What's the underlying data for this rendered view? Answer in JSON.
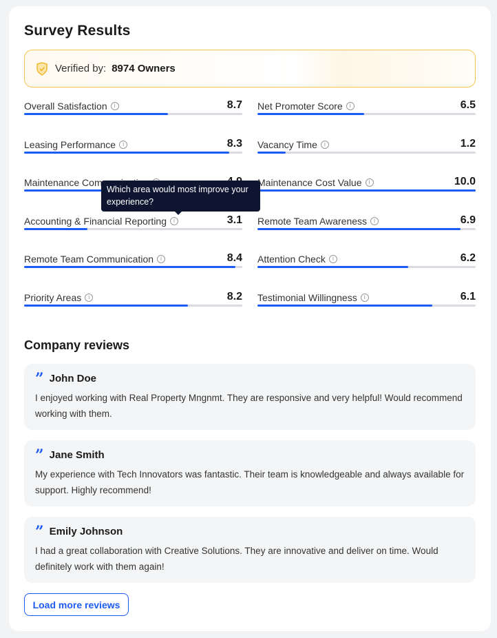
{
  "title": "Survey Results",
  "verified": {
    "label": "Verified by:",
    "value": "8974 Owners"
  },
  "metrics": [
    {
      "name": "Overall Satisfaction",
      "score": "8.7",
      "fill": 0.66
    },
    {
      "name": "Net Promoter Score",
      "score": "6.5",
      "fill": 0.49
    },
    {
      "name": "Leasing Performance",
      "score": "8.3",
      "fill": 0.94
    },
    {
      "name": "Vacancy Time",
      "score": "1.2",
      "fill": 0.13
    },
    {
      "name": "Maintenance Communication",
      "score": "4.9",
      "fill": 0.5
    },
    {
      "name": "Maintenance Cost Value",
      "score": "10.0",
      "fill": 1.0
    },
    {
      "name": "Accounting & Financial Reporting",
      "score": "3.1",
      "fill": 0.29
    },
    {
      "name": "Remote Team Awareness",
      "score": "6.9",
      "fill": 0.93
    },
    {
      "name": "Remote Team Communication",
      "score": "8.4",
      "fill": 0.97
    },
    {
      "name": "Attention Check",
      "score": "6.2",
      "fill": 0.69
    },
    {
      "name": "Priority Areas",
      "score": "8.2",
      "fill": 0.75
    },
    {
      "name": "Testimonial Willingness",
      "score": "6.1",
      "fill": 0.8
    }
  ],
  "tooltip": "Which area would most improve your experience?",
  "reviews_title": "Company reviews",
  "reviews": [
    {
      "name": "John Doe",
      "text": "I enjoyed working with Real Property Mngnmt. They are responsive and very helpful! Would recommend working with them."
    },
    {
      "name": "Jane Smith",
      "text": "My experience with Tech Innovators was fantastic. Their team is knowledgeable and always available for support. Highly recommend!"
    },
    {
      "name": "Emily Johnson",
      "text": "I had a great collaboration with Creative Solutions. They are innovative and deliver on time. Would definitely work with them again!"
    }
  ],
  "load_more": "Load more reviews",
  "colors": {
    "accent": "#1d5bf5",
    "verified_border": "#f6c453",
    "tooltip_bg": "#0d1530"
  }
}
